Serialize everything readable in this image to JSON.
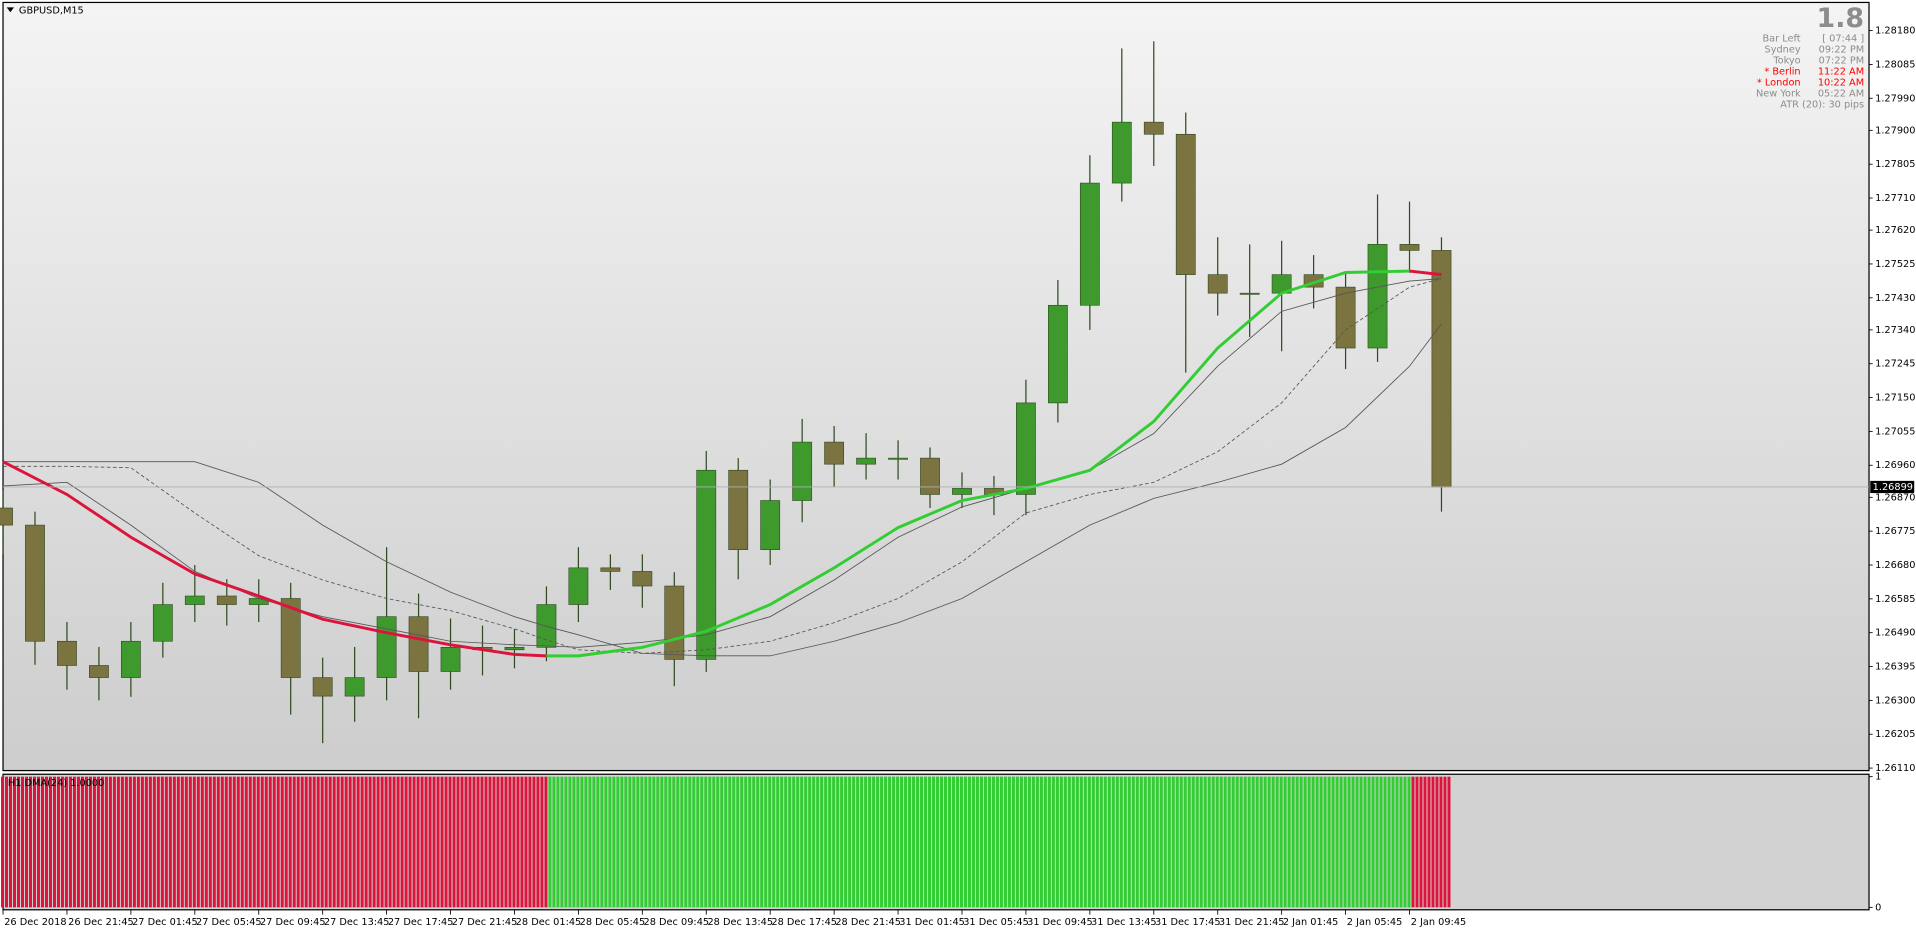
{
  "chart_data": [
    {
      "type": "candlestick",
      "title": "GBPUSD,M15",
      "x": [
        0,
        8,
        16,
        24,
        32,
        40,
        48,
        56,
        64,
        72,
        80,
        88,
        96,
        104,
        112,
        120,
        128,
        136,
        144,
        152,
        160,
        168,
        176,
        184,
        192,
        200,
        208,
        216,
        224,
        232,
        240,
        248,
        256,
        264,
        272,
        280,
        288,
        296,
        304,
        312,
        320,
        328,
        336,
        344,
        352,
        360
      ],
      "open": [
        1.2684,
        1.26792,
        1.26466,
        1.26398,
        1.26364,
        1.26466,
        1.26569,
        1.26593,
        1.26569,
        1.26586,
        1.26364,
        1.26312,
        1.26364,
        1.26535,
        1.26381,
        1.26449,
        1.26442,
        1.26449,
        1.26569,
        1.26672,
        1.26662,
        1.26621,
        1.26415,
        1.26946,
        1.26723,
        1.26861,
        1.27025,
        1.26963,
        1.2698,
        1.2698,
        1.26878,
        1.26895,
        1.26878,
        1.27135,
        1.27409,
        1.27752,
        1.27923,
        1.27889,
        1.27495,
        1.27443,
        1.27443,
        1.27495,
        1.2746,
        1.27289,
        1.2758,
        1.27563
      ],
      "high": [
        1.2689,
        1.2683,
        1.2652,
        1.2645,
        1.2652,
        1.2663,
        1.2668,
        1.2664,
        1.2664,
        1.2663,
        1.2642,
        1.2645,
        1.2673,
        1.266,
        1.2653,
        1.2651,
        1.265,
        1.2662,
        1.2673,
        1.2671,
        1.2671,
        1.2666,
        1.27,
        1.2698,
        1.2692,
        1.2709,
        1.2707,
        1.2705,
        1.2703,
        1.2701,
        1.2694,
        1.2693,
        1.272,
        1.2748,
        1.2783,
        1.2813,
        1.2815,
        1.2795,
        1.276,
        1.2758,
        1.2759,
        1.2755,
        1.275,
        1.2772,
        1.277,
        1.276
      ],
      "low": [
        1.2671,
        1.264,
        1.2633,
        1.263,
        1.2631,
        1.2642,
        1.2652,
        1.2651,
        1.2652,
        1.2626,
        1.2618,
        1.2624,
        1.263,
        1.2625,
        1.2633,
        1.2637,
        1.2639,
        1.2641,
        1.2652,
        1.2661,
        1.2656,
        1.2634,
        1.2638,
        1.2664,
        1.2668,
        1.268,
        1.269,
        1.2692,
        1.2692,
        1.2684,
        1.2684,
        1.2682,
        1.2682,
        1.2708,
        1.2734,
        1.277,
        1.278,
        1.2722,
        1.2738,
        1.2732,
        1.2728,
        1.274,
        1.2723,
        1.2725,
        1.275,
        1.2683
      ],
      "close": [
        1.26792,
        1.26466,
        1.26398,
        1.26364,
        1.26466,
        1.26569,
        1.26593,
        1.26569,
        1.26586,
        1.26364,
        1.26312,
        1.26364,
        1.26535,
        1.26381,
        1.26449,
        1.26442,
        1.26449,
        1.26569,
        1.26672,
        1.26662,
        1.26621,
        1.26415,
        1.26946,
        1.26723,
        1.26861,
        1.27025,
        1.26963,
        1.2698,
        1.2698,
        1.26878,
        1.26895,
        1.26878,
        1.27135,
        1.27409,
        1.27752,
        1.27923,
        1.27889,
        1.27495,
        1.27443,
        1.27443,
        1.27495,
        1.2746,
        1.27289,
        1.2758,
        1.27563,
        1.26899
      ],
      "up_color": "#3f9a2e",
      "down_color": "#7b7340",
      "wick_color": "#2f4a20",
      "xlim": [
        0,
        467
      ],
      "xticks": [
        {
          "value": 0,
          "label": "26 Dec 2018"
        },
        {
          "value": 16,
          "label": "26 Dec 21:45"
        },
        {
          "value": 32,
          "label": "27 Dec 01:45"
        },
        {
          "value": 48,
          "label": "27 Dec 05:45"
        },
        {
          "value": 64,
          "label": "27 Dec 09:45"
        },
        {
          "value": 80,
          "label": "27 Dec 13:45"
        },
        {
          "value": 96,
          "label": "27 Dec 17:45"
        },
        {
          "value": 112,
          "label": "27 Dec 21:45"
        },
        {
          "value": 128,
          "label": "28 Dec 01:45"
        },
        {
          "value": 144,
          "label": "28 Dec 05:45"
        },
        {
          "value": 160,
          "label": "28 Dec 09:45"
        },
        {
          "value": 176,
          "label": "28 Dec 13:45"
        },
        {
          "value": 192,
          "label": "28 Dec 17:45"
        },
        {
          "value": 208,
          "label": "28 Dec 21:45"
        },
        {
          "value": 224,
          "label": "31 Dec 01:45"
        },
        {
          "value": 240,
          "label": "31 Dec 05:45"
        },
        {
          "value": 256,
          "label": "31 Dec 09:45"
        },
        {
          "value": 272,
          "label": "31 Dec 13:45"
        },
        {
          "value": 288,
          "label": "31 Dec 17:45"
        },
        {
          "value": 304,
          "label": "31 Dec 21:45"
        },
        {
          "value": 320,
          "label": "2 Jan 01:45"
        },
        {
          "value": 336,
          "label": "2 Jan 05:45"
        },
        {
          "value": 352,
          "label": "2 Jan 09:45"
        }
      ],
      "ylim": [
        1.26103,
        1.28259
      ],
      "yticks": [
        {
          "value": 1.2818,
          "label": "1.28180"
        },
        {
          "value": 1.28085,
          "label": "1.28085"
        },
        {
          "value": 1.2799,
          "label": "1.27990"
        },
        {
          "value": 1.279,
          "label": "1.27900"
        },
        {
          "value": 1.27805,
          "label": "1.27805"
        },
        {
          "value": 1.2771,
          "label": "1.27710"
        },
        {
          "value": 1.2762,
          "label": "1.27620"
        },
        {
          "value": 1.27525,
          "label": "1.27525"
        },
        {
          "value": 1.2743,
          "label": "1.27430"
        },
        {
          "value": 1.2734,
          "label": "1.27340"
        },
        {
          "value": 1.27245,
          "label": "1.27245"
        },
        {
          "value": 1.2715,
          "label": "1.27150"
        },
        {
          "value": 1.27055,
          "label": "1.27055"
        },
        {
          "value": 1.2696,
          "label": "1.26960"
        },
        {
          "value": 1.2687,
          "label": "1.26870"
        },
        {
          "value": 1.26775,
          "label": "1.26775"
        },
        {
          "value": 1.2668,
          "label": "1.26680"
        },
        {
          "value": 1.26585,
          "label": "1.26585"
        },
        {
          "value": 1.2649,
          "label": "1.26490"
        },
        {
          "value": 1.26395,
          "label": "1.26395"
        },
        {
          "value": 1.263,
          "label": "1.26300"
        },
        {
          "value": 1.26205,
          "label": "1.26205"
        },
        {
          "value": 1.2611,
          "label": "1.26110"
        }
      ],
      "last_price": {
        "value": 1.26899,
        "label": "1.26899"
      },
      "lines": {
        "x": [
          0,
          16,
          32,
          48,
          64,
          80,
          96,
          112,
          128,
          136,
          144,
          160,
          176,
          192,
          208,
          224,
          240,
          256,
          272,
          288,
          304,
          320,
          336,
          352,
          360
        ],
        "series": [
          {
            "color": "#555555",
            "line_width": 0.7,
            "dashed": false,
            "values": [
              1.2697,
              1.2697,
              1.2697,
              1.2697,
              1.26912,
              1.26792,
              1.26689,
              1.26604,
              1.26535,
              1.26508,
              1.26484,
              1.26432,
              1.26425,
              1.26425,
              1.26466,
              1.26518,
              1.26586,
              1.26689,
              1.26792,
              1.26867,
              1.26912,
              1.26963,
              1.27066,
              1.27238,
              1.27357
            ]
          },
          {
            "color": "#555555",
            "line_width": 0.7,
            "dashed": true,
            "values": [
              1.26957,
              1.26957,
              1.26953,
              1.26826,
              1.26706,
              1.26638,
              1.26586,
              1.26552,
              1.26501,
              1.2647,
              1.26442,
              1.26432,
              1.26442,
              1.26466,
              1.26518,
              1.26586,
              1.26689,
              1.26826,
              1.26878,
              1.26912,
              1.26998,
              1.27135,
              1.2734,
              1.2746,
              1.27484
            ]
          },
          {
            "color": "#555555",
            "line_width": 0.7,
            "dashed": false,
            "values": [
              1.26902,
              1.26912,
              1.26792,
              1.26662,
              1.26586,
              1.26535,
              1.26501,
              1.26466,
              1.26456,
              1.26453,
              1.26449,
              1.26463,
              1.26484,
              1.26535,
              1.26638,
              1.26758,
              1.26843,
              1.26895,
              1.26946,
              1.27049,
              1.27238,
              1.27392,
              1.27443,
              1.27477,
              1.27484
            ]
          },
          {
            "color": "#dc143c",
            "line_width": 2.4,
            "dashed": false,
            "values": [
              1.2697,
              1.26878,
              1.26758,
              1.26655,
              1.26593,
              1.26528,
              1.2649,
              1.26456,
              1.26429,
              1.26425,
              null,
              null,
              null,
              null,
              null,
              null,
              null,
              null,
              null,
              null,
              null,
              null,
              null,
              1.27505,
              1.27495
            ]
          },
          {
            "color": "#32cd32",
            "line_width": 2.4,
            "dashed": false,
            "values": [
              null,
              null,
              null,
              null,
              null,
              null,
              null,
              null,
              null,
              1.26425,
              1.26425,
              1.26449,
              1.26494,
              1.26569,
              1.26672,
              1.26785,
              1.26861,
              1.26895,
              1.26946,
              1.27083,
              1.27289,
              1.27443,
              1.27501,
              1.27505,
              null
            ]
          }
        ]
      }
    },
    {
      "type": "strip",
      "label": "H1 DMA(24) 1.0000",
      "segments": [
        {
          "start": 0,
          "end": 137,
          "value": 1,
          "color": "#dc143c"
        },
        {
          "start": 137,
          "end": 353,
          "value": 1,
          "color": "#32cd32"
        },
        {
          "start": 353,
          "end": 363,
          "value": 1,
          "color": "#dc143c"
        }
      ],
      "ylim": [
        0,
        1
      ],
      "yticks": [
        0,
        1
      ]
    }
  ],
  "info_panel": {
    "spread": "1.8",
    "rows": [
      [
        "Bar Left",
        "[ 07:44 ]"
      ],
      [
        "Sydney",
        "09:22 PM"
      ],
      [
        "Tokyo",
        "07:22 PM"
      ],
      [
        "* Berlin",
        "11:22 AM"
      ],
      [
        "* London",
        "10:22 AM"
      ],
      [
        "New York",
        "05:22 AM"
      ]
    ],
    "row_colors": [
      "#8c8c8c",
      "#8c8c8c",
      "#8c8c8c",
      "#ff0000",
      "#ff0000",
      "#8c8c8c"
    ],
    "footer": "ATR (20): 30 pips"
  }
}
